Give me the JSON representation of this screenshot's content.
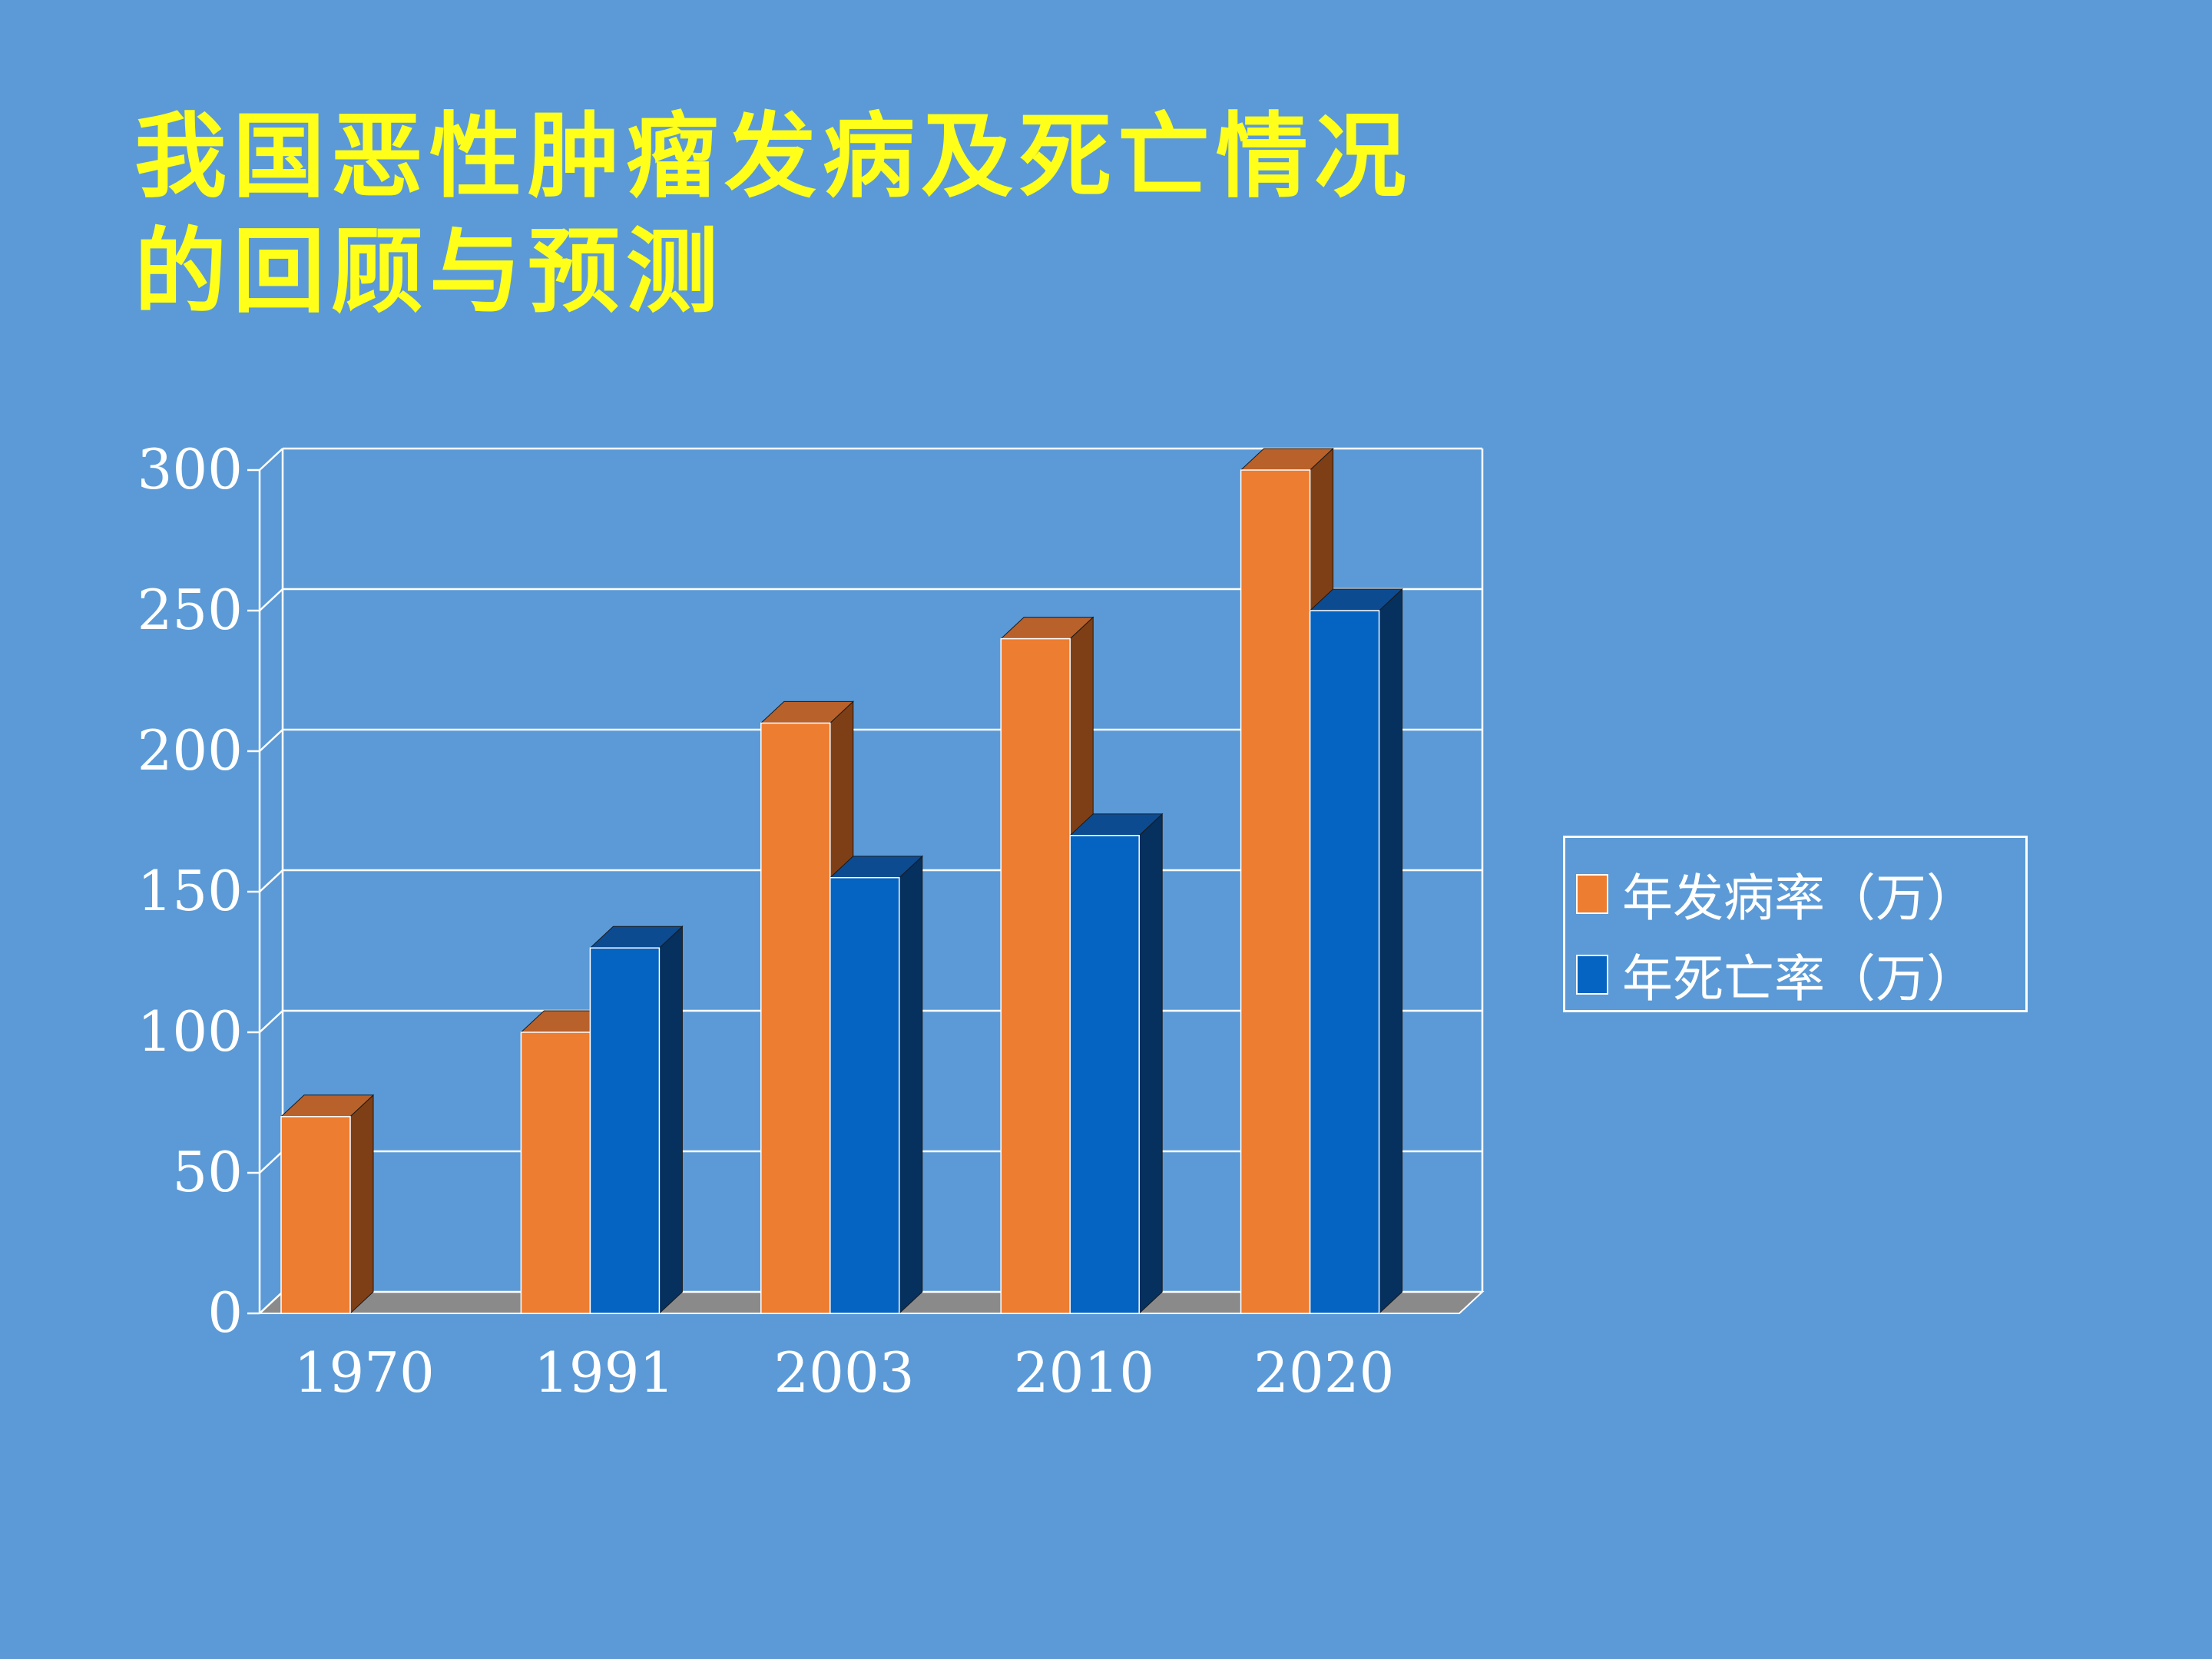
{
  "title_lines": [
    "我国恶性肿瘤发病及死亡情况",
    "的回顾与预测"
  ],
  "colors": {
    "background": "#5b9ad6",
    "title": "#ffff1a",
    "incidence_front": "#ed7d31",
    "incidence_top": "#b9612a",
    "incidence_side": "#7f3f16",
    "mortality_front": "#0563c1",
    "mortality_top": "#0d4b91",
    "mortality_side": "#06305e",
    "floor": "#8a8a8a",
    "gridline": "#ffffff"
  },
  "chart_data": {
    "type": "bar",
    "style": "3d-clustered-column",
    "categories": [
      "1970",
      "1991",
      "2003",
      "2010",
      "2020"
    ],
    "series": [
      {
        "name": "年发病率（万）",
        "values": [
          70,
          100,
          210,
          240,
          300
        ]
      },
      {
        "name": "年死亡率（万）",
        "values": [
          null,
          130,
          155,
          170,
          250
        ]
      }
    ],
    "y_ticks": [
      "0",
      "50",
      "100",
      "150",
      "200",
      "250",
      "300"
    ],
    "ylim": [
      0,
      300
    ],
    "grid": true,
    "legend_position": "right"
  }
}
